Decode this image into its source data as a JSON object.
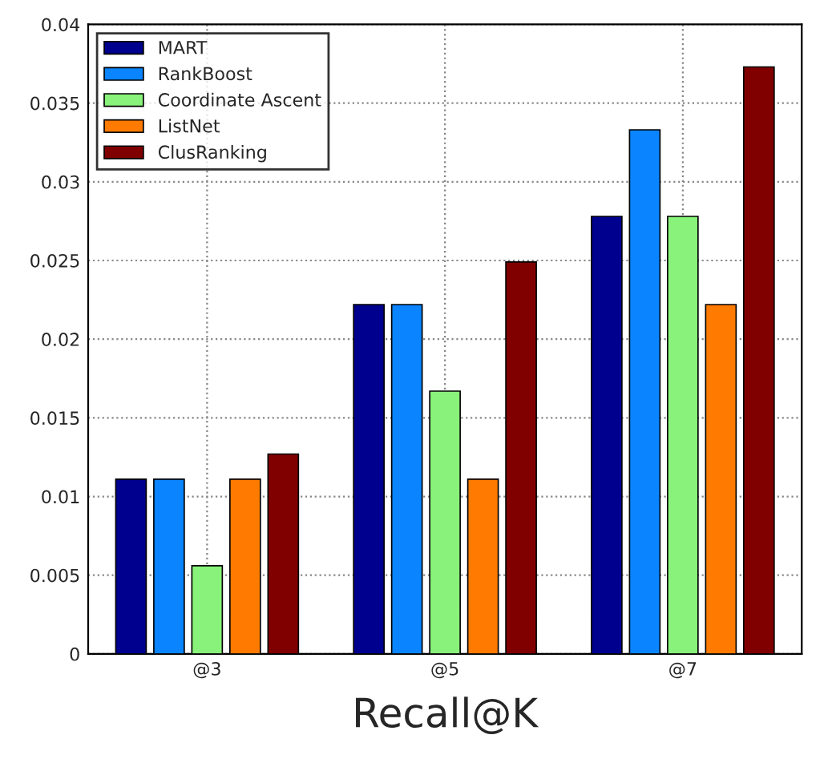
{
  "chart_data": {
    "type": "bar",
    "xlabel": "Recall@K",
    "categories": [
      "@3",
      "@5",
      "@7"
    ],
    "series": [
      {
        "name": "MART",
        "color": "#00008f",
        "values": [
          0.0111,
          0.0222,
          0.0278
        ]
      },
      {
        "name": "RankBoost",
        "color": "#0a84ff",
        "values": [
          0.0111,
          0.0222,
          0.0333
        ]
      },
      {
        "name": "Coordinate Ascent",
        "color": "#88f27a",
        "values": [
          0.0056,
          0.0167,
          0.0278
        ]
      },
      {
        "name": "ListNet",
        "color": "#ff7a00",
        "values": [
          0.0111,
          0.0111,
          0.0222
        ]
      },
      {
        "name": "ClusRanking",
        "color": "#800000",
        "values": [
          0.0127,
          0.0249,
          0.0373
        ]
      }
    ],
    "ylim": [
      0,
      0.04
    ],
    "yticks": [
      0,
      0.005,
      0.01,
      0.015,
      0.02,
      0.025,
      0.03,
      0.035,
      0.04
    ],
    "grid": true,
    "legend": "top left"
  }
}
